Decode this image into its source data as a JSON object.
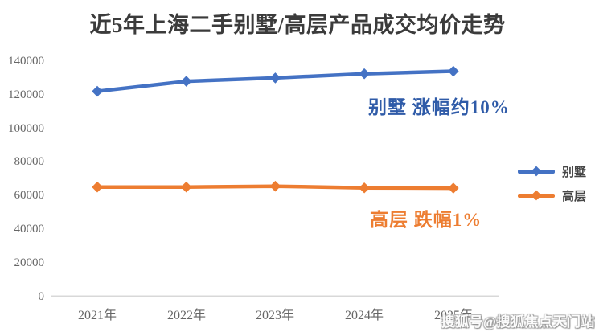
{
  "title": "近5年上海二手别墅/高层产品成交均价走势",
  "chart_data": {
    "type": "line",
    "categories": [
      "2021年",
      "2022年",
      "2023年",
      "2024年",
      "2025年"
    ],
    "series": [
      {
        "name": "别墅",
        "color": "#4472C4",
        "values": [
          122000,
          128000,
          130000,
          132500,
          134000
        ]
      },
      {
        "name": "高层",
        "color": "#ED7D31",
        "values": [
          65000,
          65000,
          65500,
          64500,
          64350
        ]
      }
    ],
    "ylim": [
      0,
      140000
    ],
    "yticks": [
      0,
      20000,
      40000,
      60000,
      80000,
      100000,
      120000,
      140000
    ],
    "grid": false,
    "legend_position": "right",
    "axis_color": "#d8d8d8",
    "annotations": [
      {
        "text": "别墅 涨幅约10%",
        "color": "#2F5BA8"
      },
      {
        "text": "高层 跌幅1%",
        "color": "#ED7D31"
      }
    ]
  },
  "watermark": "搜狐号@搜狐焦点天门站"
}
